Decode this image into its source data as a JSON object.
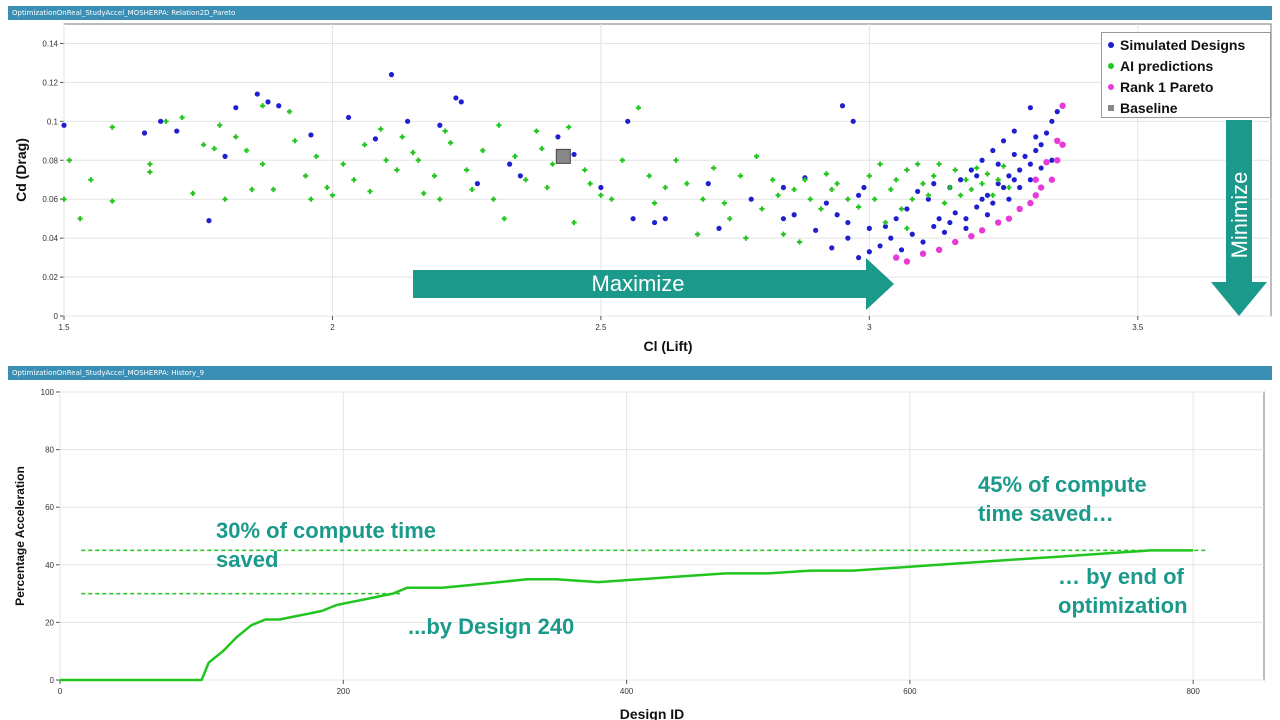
{
  "panels": {
    "top_title": "OptimizationOnReal_StudyAccel_MOSHERPA: Relation2D_Pareto",
    "bottom_title": "OptimizationOnReal_StudyAccel_MOSHERPA: History_9"
  },
  "colors": {
    "simulated": "#1f1fd0",
    "ai": "#22c41e",
    "pareto": "#e83ad9",
    "baseline": "#888888",
    "arrow": "#1b9a8c",
    "line": "#22c41e",
    "annotation": "#1b9a8c"
  },
  "annotations": {
    "maximize": "Maximize",
    "minimize": "Minimize",
    "thirty_l1": "30% of compute time",
    "thirty_l2": "saved",
    "design240": "...by Design 240",
    "fortyfive_l1": "45% of compute",
    "fortyfive_l2": "time saved…",
    "end_l1": "… by end of",
    "end_l2": "optimization"
  },
  "chart_data": [
    {
      "type": "scatter",
      "xlabel": "Cl (Lift)",
      "ylabel": "Cd (Drag)",
      "xlim": [
        1.5,
        3.75
      ],
      "ylim": [
        0,
        0.15
      ],
      "xticks": [
        "1.5",
        "2",
        "2.5",
        "3",
        "3.5"
      ],
      "yticks": [
        "0",
        "0.02",
        "0.04",
        "0.06",
        "0.08",
        "0.1",
        "0.12",
        "0.14"
      ],
      "legend_position": "top-right",
      "legend": [
        "Simulated Designs",
        "AI predictions",
        "Rank 1 Pareto",
        "Baseline"
      ],
      "series": [
        {
          "name": "Simulated Designs",
          "points": [
            [
              1.5,
              0.098
            ],
            [
              1.65,
              0.094
            ],
            [
              1.68,
              0.1
            ],
            [
              1.71,
              0.095
            ],
            [
              1.77,
              0.049
            ],
            [
              1.8,
              0.082
            ],
            [
              1.82,
              0.107
            ],
            [
              1.86,
              0.114
            ],
            [
              1.88,
              0.11
            ],
            [
              1.9,
              0.108
            ],
            [
              1.96,
              0.093
            ],
            [
              2.03,
              0.102
            ],
            [
              2.08,
              0.091
            ],
            [
              2.11,
              0.124
            ],
            [
              2.14,
              0.1
            ],
            [
              2.2,
              0.098
            ],
            [
              2.23,
              0.112
            ],
            [
              2.24,
              0.11
            ],
            [
              2.27,
              0.068
            ],
            [
              2.33,
              0.078
            ],
            [
              2.35,
              0.072
            ],
            [
              2.42,
              0.092
            ],
            [
              2.45,
              0.083
            ],
            [
              2.5,
              0.066
            ],
            [
              2.55,
              0.1
            ],
            [
              2.56,
              0.05
            ],
            [
              2.6,
              0.048
            ],
            [
              2.62,
              0.05
            ],
            [
              2.7,
              0.068
            ],
            [
              2.72,
              0.045
            ],
            [
              2.78,
              0.06
            ],
            [
              2.84,
              0.066
            ],
            [
              2.88,
              0.071
            ],
            [
              2.92,
              0.058
            ],
            [
              2.94,
              0.052
            ],
            [
              2.95,
              0.108
            ],
            [
              2.97,
              0.1
            ],
            [
              2.98,
              0.062
            ],
            [
              2.99,
              0.066
            ],
            [
              3.0,
              0.045
            ],
            [
              2.93,
              0.035
            ],
            [
              2.96,
              0.04
            ],
            [
              2.98,
              0.03
            ],
            [
              3.0,
              0.033
            ],
            [
              3.02,
              0.036
            ],
            [
              3.04,
              0.04
            ],
            [
              3.06,
              0.034
            ],
            [
              3.08,
              0.042
            ],
            [
              3.1,
              0.038
            ],
            [
              3.12,
              0.046
            ],
            [
              3.13,
              0.05
            ],
            [
              3.15,
              0.048
            ],
            [
              3.16,
              0.053
            ],
            [
              3.18,
              0.05
            ],
            [
              3.2,
              0.056
            ],
            [
              3.21,
              0.06
            ],
            [
              3.22,
              0.062
            ],
            [
              3.23,
              0.058
            ],
            [
              3.24,
              0.068
            ],
            [
              3.25,
              0.066
            ],
            [
              3.26,
              0.072
            ],
            [
              3.27,
              0.07
            ],
            [
              3.28,
              0.075
            ],
            [
              3.29,
              0.082
            ],
            [
              3.3,
              0.078
            ],
            [
              3.31,
              0.085
            ],
            [
              3.32,
              0.088
            ],
            [
              3.33,
              0.094
            ],
            [
              3.34,
              0.1
            ],
            [
              3.35,
              0.105
            ],
            [
              3.3,
              0.107
            ],
            [
              3.27,
              0.095
            ],
            [
              3.25,
              0.09
            ],
            [
              3.23,
              0.085
            ],
            [
              3.21,
              0.08
            ],
            [
              3.19,
              0.075
            ],
            [
              3.17,
              0.07
            ],
            [
              3.15,
              0.066
            ],
            [
              3.11,
              0.06
            ],
            [
              3.07,
              0.055
            ],
            [
              3.05,
              0.05
            ],
            [
              3.03,
              0.046
            ],
            [
              3.14,
              0.043
            ],
            [
              3.18,
              0.045
            ],
            [
              3.22,
              0.052
            ],
            [
              3.26,
              0.06
            ],
            [
              3.28,
              0.066
            ],
            [
              3.3,
              0.07
            ],
            [
              3.32,
              0.076
            ],
            [
              3.34,
              0.08
            ],
            [
              2.86,
              0.052
            ],
            [
              2.84,
              0.05
            ],
            [
              2.9,
              0.044
            ],
            [
              2.96,
              0.048
            ],
            [
              3.09,
              0.064
            ],
            [
              3.12,
              0.068
            ],
            [
              3.2,
              0.072
            ],
            [
              3.24,
              0.078
            ],
            [
              3.27,
              0.083
            ],
            [
              3.31,
              0.092
            ]
          ]
        },
        {
          "name": "AI predictions",
          "points": [
            [
              1.5,
              0.06
            ],
            [
              1.51,
              0.08
            ],
            [
              1.53,
              0.05
            ],
            [
              1.55,
              0.07
            ],
            [
              1.59,
              0.097
            ],
            [
              1.59,
              0.059
            ],
            [
              1.66,
              0.078
            ],
            [
              1.66,
              0.074
            ],
            [
              1.69,
              0.1
            ],
            [
              1.72,
              0.102
            ],
            [
              1.74,
              0.063
            ],
            [
              1.76,
              0.088
            ],
            [
              1.78,
              0.086
            ],
            [
              1.79,
              0.098
            ],
            [
              1.82,
              0.092
            ],
            [
              1.84,
              0.085
            ],
            [
              1.85,
              0.065
            ],
            [
              1.87,
              0.078
            ],
            [
              1.89,
              0.065
            ],
            [
              1.92,
              0.105
            ],
            [
              1.93,
              0.09
            ],
            [
              1.95,
              0.072
            ],
            [
              1.97,
              0.082
            ],
            [
              1.99,
              0.066
            ],
            [
              2.0,
              0.062
            ],
            [
              2.02,
              0.078
            ],
            [
              2.04,
              0.07
            ],
            [
              2.06,
              0.088
            ],
            [
              2.07,
              0.064
            ],
            [
              2.09,
              0.096
            ],
            [
              2.1,
              0.08
            ],
            [
              2.12,
              0.075
            ],
            [
              2.13,
              0.092
            ],
            [
              2.15,
              0.084
            ],
            [
              2.17,
              0.063
            ],
            [
              2.19,
              0.072
            ],
            [
              2.21,
              0.095
            ],
            [
              2.22,
              0.089
            ],
            [
              2.25,
              0.075
            ],
            [
              2.26,
              0.065
            ],
            [
              2.28,
              0.085
            ],
            [
              2.3,
              0.06
            ],
            [
              2.31,
              0.098
            ],
            [
              2.32,
              0.05
            ],
            [
              2.34,
              0.082
            ],
            [
              2.36,
              0.07
            ],
            [
              2.38,
              0.095
            ],
            [
              2.4,
              0.066
            ],
            [
              2.41,
              0.078
            ],
            [
              2.44,
              0.097
            ],
            [
              2.45,
              0.048
            ],
            [
              2.47,
              0.075
            ],
            [
              2.5,
              0.062
            ],
            [
              2.52,
              0.06
            ],
            [
              2.54,
              0.08
            ],
            [
              2.57,
              0.107
            ],
            [
              2.59,
              0.072
            ],
            [
              2.62,
              0.066
            ],
            [
              2.64,
              0.08
            ],
            [
              2.66,
              0.068
            ],
            [
              2.68,
              0.042
            ],
            [
              2.71,
              0.076
            ],
            [
              2.73,
              0.058
            ],
            [
              2.76,
              0.072
            ],
            [
              2.77,
              0.04
            ],
            [
              2.79,
              0.082
            ],
            [
              2.82,
              0.07
            ],
            [
              2.84,
              0.042
            ],
            [
              2.86,
              0.065
            ],
            [
              2.87,
              0.038
            ],
            [
              2.89,
              0.06
            ],
            [
              2.91,
              0.055
            ],
            [
              2.92,
              0.073
            ],
            [
              2.94,
              0.068
            ],
            [
              3.0,
              0.072
            ],
            [
              3.01,
              0.06
            ],
            [
              3.02,
              0.078
            ],
            [
              3.04,
              0.065
            ],
            [
              3.05,
              0.07
            ],
            [
              3.06,
              0.055
            ],
            [
              3.07,
              0.075
            ],
            [
              3.08,
              0.06
            ],
            [
              3.09,
              0.078
            ],
            [
              3.1,
              0.068
            ],
            [
              3.11,
              0.062
            ],
            [
              3.12,
              0.072
            ],
            [
              3.13,
              0.078
            ],
            [
              3.14,
              0.058
            ],
            [
              3.15,
              0.066
            ],
            [
              3.16,
              0.075
            ],
            [
              3.17,
              0.062
            ],
            [
              3.18,
              0.07
            ],
            [
              3.19,
              0.065
            ],
            [
              3.2,
              0.076
            ],
            [
              3.21,
              0.068
            ],
            [
              3.22,
              0.073
            ],
            [
              3.23,
              0.062
            ],
            [
              3.24,
              0.07
            ],
            [
              3.25,
              0.077
            ],
            [
              3.26,
              0.066
            ],
            [
              2.98,
              0.056
            ],
            [
              3.03,
              0.048
            ],
            [
              3.07,
              0.045
            ],
            [
              2.96,
              0.06
            ],
            [
              2.93,
              0.065
            ],
            [
              2.88,
              0.07
            ],
            [
              2.83,
              0.062
            ],
            [
              2.8,
              0.055
            ],
            [
              1.8,
              0.06
            ],
            [
              1.87,
              0.108
            ],
            [
              2.2,
              0.06
            ],
            [
              2.39,
              0.086
            ],
            [
              2.6,
              0.058
            ],
            [
              2.74,
              0.05
            ],
            [
              1.96,
              0.06
            ],
            [
              2.16,
              0.08
            ],
            [
              2.48,
              0.068
            ],
            [
              2.69,
              0.06
            ]
          ]
        },
        {
          "name": "Rank 1 Pareto",
          "points": [
            [
              3.05,
              0.03
            ],
            [
              3.07,
              0.028
            ],
            [
              3.1,
              0.032
            ],
            [
              3.13,
              0.034
            ],
            [
              3.16,
              0.038
            ],
            [
              3.19,
              0.041
            ],
            [
              3.21,
              0.044
            ],
            [
              3.24,
              0.048
            ],
            [
              3.26,
              0.05
            ],
            [
              3.28,
              0.055
            ],
            [
              3.3,
              0.058
            ],
            [
              3.31,
              0.062
            ],
            [
              3.32,
              0.066
            ],
            [
              3.34,
              0.07
            ],
            [
              3.35,
              0.08
            ],
            [
              3.36,
              0.088
            ],
            [
              3.36,
              0.108
            ],
            [
              3.35,
              0.09
            ],
            [
              3.31,
              0.07
            ],
            [
              3.33,
              0.079
            ]
          ]
        },
        {
          "name": "Baseline",
          "points": [
            [
              2.43,
              0.082
            ]
          ]
        }
      ]
    },
    {
      "type": "line",
      "xlabel": "Design ID",
      "ylabel": "Percentage Acceleration",
      "xlim": [
        0,
        850
      ],
      "ylim": [
        0,
        100
      ],
      "xticks": [
        "0",
        "200",
        "400",
        "600",
        "800"
      ],
      "yticks": [
        "0",
        "20",
        "40",
        "60",
        "80",
        "100"
      ],
      "reference_lines": [
        30,
        45
      ],
      "series": [
        {
          "x": [
            0,
            100,
            105,
            115,
            125,
            135,
            145,
            155,
            165,
            175,
            185,
            195,
            205,
            215,
            225,
            235,
            245,
            255,
            270,
            290,
            310,
            330,
            350,
            380,
            410,
            440,
            470,
            500,
            530,
            560,
            590,
            620,
            650,
            680,
            710,
            740,
            770,
            800
          ],
          "y": [
            0,
            0,
            6,
            10,
            15,
            19,
            21,
            21,
            22,
            23,
            24,
            26,
            27,
            28,
            29,
            30,
            32,
            32,
            32,
            33,
            34,
            35,
            35,
            34,
            35,
            36,
            37,
            37,
            38,
            38,
            39,
            40,
            41,
            42,
            43,
            44,
            45,
            45
          ]
        }
      ]
    }
  ]
}
